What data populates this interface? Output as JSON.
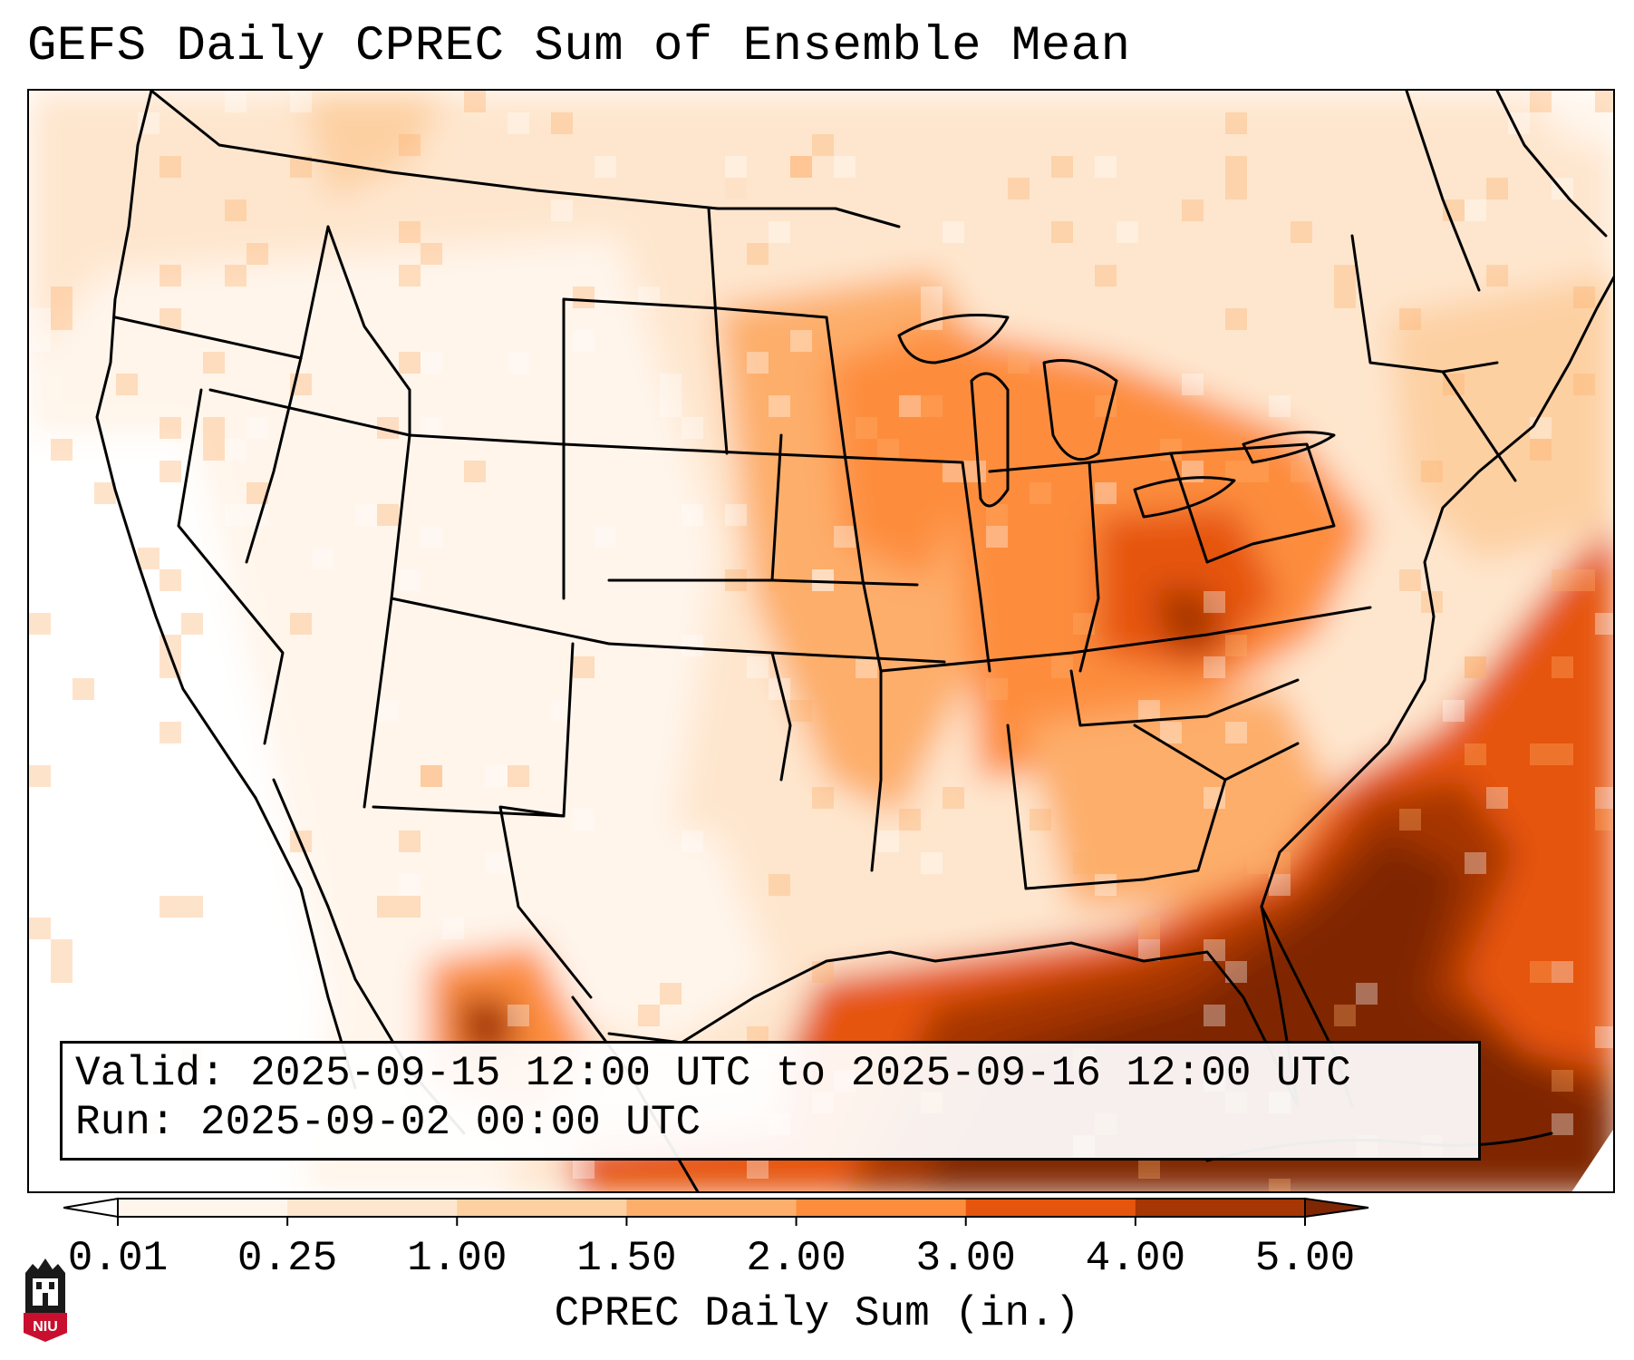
{
  "title": "GEFS Daily CPREC Sum of Ensemble Mean",
  "info": {
    "valid_label": "Valid:",
    "valid_value": "2025-09-15 12:00 UTC to 2025-09-16 12:00 UTC",
    "run_label": "Run:",
    "run_value": "2025-09-02 00:00 UTC"
  },
  "colorbar": {
    "label": "CPREC Daily Sum (in.)",
    "ticks": [
      "0.01",
      "0.25",
      "1.00",
      "1.50",
      "2.00",
      "3.00",
      "4.00",
      "5.00"
    ],
    "colors": [
      "#fff5eb",
      "#fee6ce",
      "#fdd0a2",
      "#fdae6b",
      "#fd8d3c",
      "#e6550d",
      "#a63603"
    ],
    "under_color": "#ffffff",
    "over_color": "#7f2704"
  },
  "logo": {
    "text": "NIU",
    "icon": "university-seal-icon",
    "color": "#c8102e"
  },
  "map": {
    "projection": "lambert-conformal",
    "region": "contiguous-united-states",
    "features": [
      "coastlines",
      "us-state-borders",
      "international-borders"
    ],
    "heaviest_precipitation": "Gulf of Mexico, western Atlantic off the Southeast coast, Ohio Valley"
  }
}
